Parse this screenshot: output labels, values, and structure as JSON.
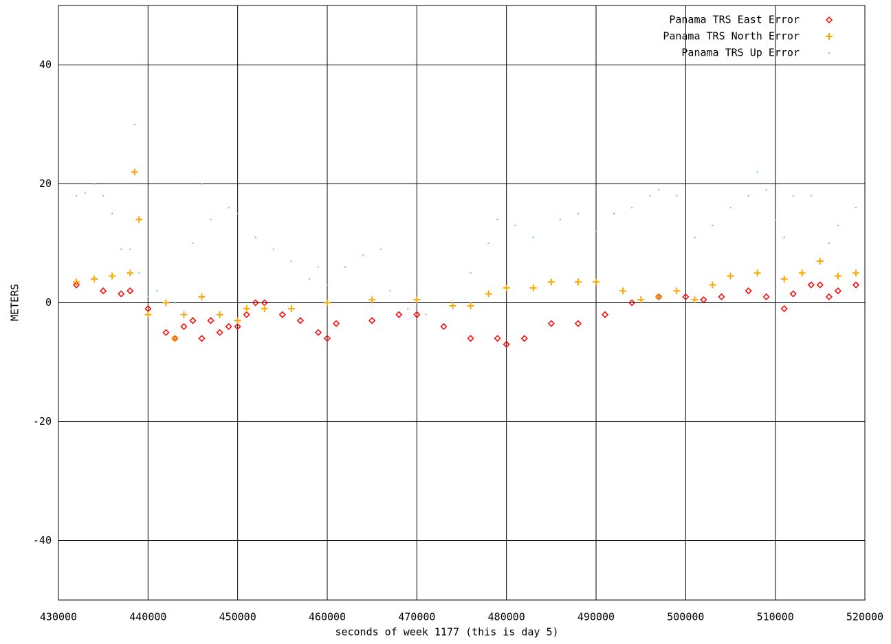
{
  "chart_data": {
    "type": "scatter",
    "x_label": "seconds of week 1177 (this is day 5)",
    "y_label": "METERS",
    "xlim": [
      430000,
      520000
    ],
    "xticks": [
      430000,
      440000,
      450000,
      460000,
      470000,
      480000,
      490000,
      500000,
      510000,
      520000
    ],
    "ylim": [
      -50,
      50
    ],
    "yticks": [
      -40,
      -20,
      0,
      20,
      40
    ],
    "grid": true,
    "legend": "top-right",
    "series": [
      {
        "name": "Panama TRS East Error",
        "color": "#ff0000",
        "marker": "diamond",
        "x": [
          432000,
          435000,
          437000,
          438000,
          440000,
          442000,
          443000,
          444000,
          445000,
          446000,
          447000,
          448000,
          449000,
          450000,
          451000,
          452000,
          453000,
          455000,
          457000,
          459000,
          460000,
          461000,
          465000,
          468000,
          470000,
          473000,
          476000,
          479000,
          480000,
          482000,
          485000,
          488000,
          491000,
          494000,
          497000,
          500000,
          502000,
          504000,
          507000,
          509000,
          511000,
          512000,
          514000,
          515000,
          516000,
          517000,
          519000
        ],
        "values": [
          3,
          2,
          1.5,
          2,
          -1,
          -5,
          -6,
          -4,
          -3,
          -6,
          -3,
          -5,
          -4,
          -4,
          -2,
          0,
          0,
          -2,
          -3,
          -5,
          -6,
          -3.5,
          -3,
          -2,
          -2,
          -4,
          -6,
          -6,
          -7,
          -6,
          -3.5,
          -3.5,
          -2,
          0,
          1,
          1,
          0.5,
          1,
          2,
          1,
          -1,
          1.5,
          3,
          3,
          1,
          2,
          3
        ]
      },
      {
        "name": "Panama TRS North Error",
        "color": "#ffa500",
        "marker": "plus",
        "x": [
          432000,
          434000,
          436000,
          438000,
          438500,
          439000,
          440000,
          442000,
          443000,
          444000,
          446000,
          448000,
          450000,
          451000,
          453000,
          456000,
          460000,
          465000,
          470000,
          474000,
          476000,
          478000,
          480000,
          483000,
          485000,
          488000,
          490000,
          493000,
          495000,
          497000,
          499000,
          501000,
          503000,
          505000,
          508000,
          511000,
          513000,
          515000,
          517000,
          519000
        ],
        "values": [
          3.5,
          4,
          4.5,
          5,
          22,
          14,
          -2,
          0,
          -6,
          -2,
          1,
          -2,
          -3,
          -1,
          -1,
          -1,
          0,
          0.5,
          0.5,
          -0.5,
          -0.5,
          1.5,
          2.5,
          2.5,
          3.5,
          3.5,
          3.5,
          2,
          0.5,
          1,
          2,
          0.5,
          3,
          4.5,
          5,
          4,
          5,
          7,
          4.5,
          5
        ]
      },
      {
        "name": "Panama TRS Up Error",
        "color": "#66cdaa",
        "marker": "dot",
        "x": [
          432000,
          433000,
          434000,
          435000,
          436000,
          437000,
          438000,
          438500,
          439000,
          440000,
          441000,
          443000,
          444000,
          445000,
          446000,
          447000,
          449000,
          450000,
          452000,
          454000,
          456000,
          458000,
          459000,
          460000,
          462000,
          464000,
          466000,
          467000,
          469000,
          471000,
          474000,
          476000,
          478000,
          479000,
          481000,
          483000,
          486000,
          488000,
          490000,
          492000,
          494000,
          496000,
          497000,
          499000,
          501000,
          503000,
          505000,
          507000,
          508000,
          509000,
          510000,
          511000,
          512000,
          514000,
          516000,
          517000,
          519000
        ],
        "values": [
          18,
          18.5,
          20,
          18,
          15,
          9,
          9,
          30,
          5,
          1,
          2,
          0,
          -2,
          10,
          20,
          14,
          16,
          15,
          11,
          9,
          7,
          4,
          6,
          3,
          6,
          8,
          9,
          2,
          -1,
          -2,
          -1,
          5,
          10,
          14,
          13,
          11,
          14,
          15,
          12,
          15,
          16,
          18,
          19,
          18,
          11,
          13,
          16,
          18,
          22,
          19,
          14,
          11,
          18,
          18,
          10,
          13,
          16
        ]
      }
    ]
  }
}
